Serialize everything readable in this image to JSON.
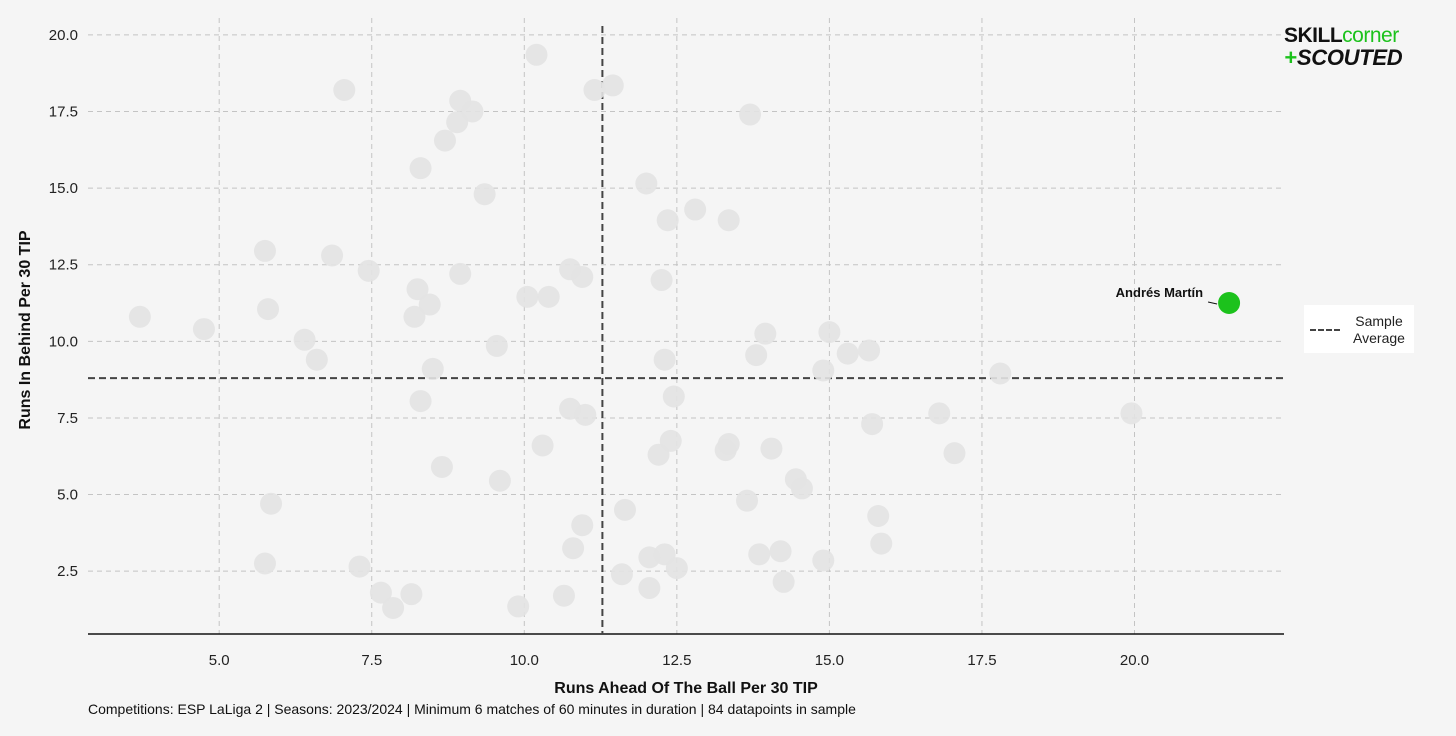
{
  "chart_data": {
    "type": "scatter",
    "xlabel": "Runs Ahead Of The Ball Per 30 TIP",
    "ylabel": "Runs In Behind Per 30 TIP",
    "xlim": [
      2.85,
      22.45
    ],
    "ylim": [
      0.45,
      20.55
    ],
    "x_ticks": [
      "5.0",
      "7.5",
      "10.0",
      "12.5",
      "15.0",
      "17.5",
      "20.0"
    ],
    "y_ticks": [
      "2.5",
      "5.0",
      "7.5",
      "10.0",
      "12.5",
      "15.0",
      "17.5",
      "20.0"
    ],
    "x_tick_values": [
      5,
      7.5,
      10,
      12.5,
      15,
      17.5,
      20
    ],
    "y_tick_values": [
      2.5,
      5,
      7.5,
      10,
      12.5,
      15,
      17.5,
      20
    ],
    "grid": true,
    "average": {
      "x": 11.28,
      "y": 8.8
    },
    "points": [
      {
        "x": 10.2,
        "y": 19.35
      },
      {
        "x": 11.15,
        "y": 18.2
      },
      {
        "x": 11.45,
        "y": 18.35
      },
      {
        "x": 7.05,
        "y": 18.2
      },
      {
        "x": 8.95,
        "y": 17.85
      },
      {
        "x": 8.9,
        "y": 17.15
      },
      {
        "x": 9.15,
        "y": 17.5
      },
      {
        "x": 8.7,
        "y": 16.55
      },
      {
        "x": 13.7,
        "y": 17.4
      },
      {
        "x": 8.3,
        "y": 15.65
      },
      {
        "x": 9.35,
        "y": 14.8
      },
      {
        "x": 12.0,
        "y": 15.15
      },
      {
        "x": 12.8,
        "y": 14.3
      },
      {
        "x": 12.35,
        "y": 13.95
      },
      {
        "x": 13.35,
        "y": 13.95
      },
      {
        "x": 5.75,
        "y": 12.95
      },
      {
        "x": 6.85,
        "y": 12.8
      },
      {
        "x": 7.45,
        "y": 12.3
      },
      {
        "x": 8.95,
        "y": 12.2
      },
      {
        "x": 10.75,
        "y": 12.35
      },
      {
        "x": 10.95,
        "y": 12.1
      },
      {
        "x": 12.25,
        "y": 12.0
      },
      {
        "x": 8.25,
        "y": 11.7
      },
      {
        "x": 8.45,
        "y": 11.2
      },
      {
        "x": 10.05,
        "y": 11.45
      },
      {
        "x": 10.4,
        "y": 11.45
      },
      {
        "x": 3.7,
        "y": 10.8
      },
      {
        "x": 4.75,
        "y": 10.4
      },
      {
        "x": 5.8,
        "y": 11.05
      },
      {
        "x": 8.2,
        "y": 10.8
      },
      {
        "x": 6.4,
        "y": 10.05
      },
      {
        "x": 6.6,
        "y": 9.4
      },
      {
        "x": 9.55,
        "y": 9.85
      },
      {
        "x": 8.5,
        "y": 9.1
      },
      {
        "x": 12.3,
        "y": 9.4
      },
      {
        "x": 13.95,
        "y": 10.25
      },
      {
        "x": 13.8,
        "y": 9.55
      },
      {
        "x": 15.0,
        "y": 10.3
      },
      {
        "x": 15.3,
        "y": 9.6
      },
      {
        "x": 15.65,
        "y": 9.7
      },
      {
        "x": 14.9,
        "y": 9.05
      },
      {
        "x": 17.8,
        "y": 8.95
      },
      {
        "x": 8.3,
        "y": 8.05
      },
      {
        "x": 12.45,
        "y": 8.2
      },
      {
        "x": 10.75,
        "y": 7.8
      },
      {
        "x": 11.0,
        "y": 7.6
      },
      {
        "x": 16.8,
        "y": 7.65
      },
      {
        "x": 19.95,
        "y": 7.65
      },
      {
        "x": 15.7,
        "y": 7.3
      },
      {
        "x": 10.3,
        "y": 6.6
      },
      {
        "x": 12.4,
        "y": 6.75
      },
      {
        "x": 12.2,
        "y": 6.3
      },
      {
        "x": 13.3,
        "y": 6.45
      },
      {
        "x": 13.35,
        "y": 6.65
      },
      {
        "x": 14.05,
        "y": 6.5
      },
      {
        "x": 17.05,
        "y": 6.35
      },
      {
        "x": 8.65,
        "y": 5.9
      },
      {
        "x": 9.6,
        "y": 5.45
      },
      {
        "x": 14.45,
        "y": 5.5
      },
      {
        "x": 14.55,
        "y": 5.2
      },
      {
        "x": 5.85,
        "y": 4.7
      },
      {
        "x": 13.65,
        "y": 4.8
      },
      {
        "x": 11.65,
        "y": 4.5
      },
      {
        "x": 15.8,
        "y": 4.3
      },
      {
        "x": 10.95,
        "y": 4.0
      },
      {
        "x": 10.8,
        "y": 3.25
      },
      {
        "x": 15.85,
        "y": 3.4
      },
      {
        "x": 12.05,
        "y": 2.95
      },
      {
        "x": 12.3,
        "y": 3.05
      },
      {
        "x": 13.85,
        "y": 3.05
      },
      {
        "x": 14.2,
        "y": 3.15
      },
      {
        "x": 5.75,
        "y": 2.75
      },
      {
        "x": 7.3,
        "y": 2.65
      },
      {
        "x": 12.5,
        "y": 2.6
      },
      {
        "x": 11.6,
        "y": 2.4
      },
      {
        "x": 14.9,
        "y": 2.85
      },
      {
        "x": 14.25,
        "y": 2.15
      },
      {
        "x": 12.05,
        "y": 1.95
      },
      {
        "x": 7.65,
        "y": 1.8
      },
      {
        "x": 8.15,
        "y": 1.75
      },
      {
        "x": 10.65,
        "y": 1.7
      },
      {
        "x": 7.85,
        "y": 1.3
      },
      {
        "x": 9.9,
        "y": 1.35
      }
    ],
    "highlight": {
      "name": "Andrés Martín",
      "x": 21.55,
      "y": 11.25,
      "color": "#1cc21c"
    },
    "legend": {
      "label": "Sample Average",
      "placement": "right"
    },
    "colors": {
      "points": "#e3e3e3",
      "highlight": "#1cc21c",
      "average_line": "#444444",
      "background": "#f5f5f5"
    }
  },
  "footer": "Competitions: ESP LaLiga 2 | Seasons: 2023/2024 | Minimum 6 matches of 60 minutes in duration | 84 datapoints in sample",
  "logo": {
    "top_dark": "SKILL",
    "top_green": "corner",
    "plus": "+",
    "bottom": "SCOUTED"
  }
}
